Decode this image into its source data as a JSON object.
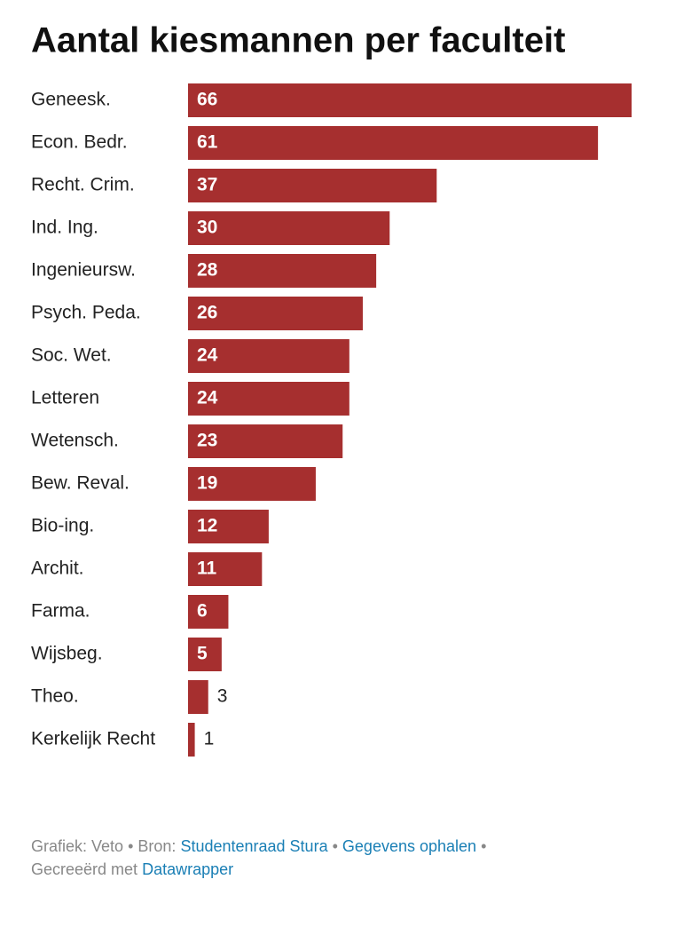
{
  "chart_data": {
    "type": "bar",
    "orientation": "horizontal",
    "title": "Aantal kiesmannen per faculteit",
    "categories": [
      "Geneesk.",
      "Econ. Bedr.",
      "Recht. Crim.",
      "Ind. Ing.",
      "Ingenieursw.",
      "Psych. Peda.",
      "Soc. Wet.",
      "Letteren",
      "Wetensch.",
      "Bew. Reval.",
      "Bio-ing.",
      "Archit.",
      "Farma.",
      "Wijsbeg.",
      "Theo.",
      "Kerkelijk Recht"
    ],
    "values": [
      66,
      61,
      37,
      30,
      28,
      26,
      24,
      24,
      23,
      19,
      12,
      11,
      6,
      5,
      3,
      1
    ],
    "color": "#a62f2f"
  },
  "footer": {
    "byline": "Grafiek: Veto",
    "separator": "•",
    "source_label": "Bron:",
    "source": "Studentenraad Stura",
    "get_data": "Gegevens ophalen",
    "created_label": "Gecreeërd met",
    "created_with": "Datawrapper"
  }
}
